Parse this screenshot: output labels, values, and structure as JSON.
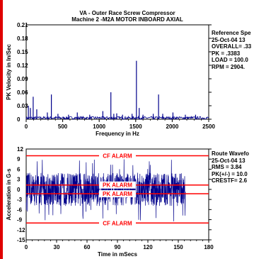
{
  "title_line1": "VA   - Outer Race Screw Compressor",
  "title_line2": "Machine 2 -M2A    MOTOR INBOARD AXIAL",
  "spectrum_info": [
    "Reference Spe",
    "25-Oct-04  13",
    "OVERALL= .33",
    "PK  =  .3383",
    "LOAD = 100.0",
    "RPM = 2904."
  ],
  "waveform_info": [
    "Route Wavefo",
    "25-Oct-04  13",
    "RMS = 3.84",
    "PK(+/-) = 10.0",
    "CRESTF= 2.6"
  ],
  "colors": {
    "trace": "#00008b",
    "alarm": "#ff0000",
    "accent_bar": "#e00000"
  },
  "chart_data": [
    {
      "type": "line",
      "xlabel": "Frequency in Hz",
      "ylabel": "PK Velocity in In/Sec",
      "xlim": [
        0,
        2500
      ],
      "ylim": [
        0,
        0.21
      ],
      "xticks": [
        "0",
        "500",
        "1000",
        "1500",
        "2000",
        "2500"
      ],
      "yticks": [
        "0",
        "0.03",
        "0.06",
        "0.09",
        "0.12",
        "0.15",
        "0.18",
        "0.21"
      ],
      "peaks": [
        {
          "x": 30,
          "y": 0.03
        },
        {
          "x": 58,
          "y": 0.025
        },
        {
          "x": 96,
          "y": 0.05
        },
        {
          "x": 145,
          "y": 0.022
        },
        {
          "x": 290,
          "y": 0.015
        },
        {
          "x": 345,
          "y": 0.055
        },
        {
          "x": 435,
          "y": 0.012
        },
        {
          "x": 580,
          "y": 0.01
        },
        {
          "x": 700,
          "y": 0.015
        },
        {
          "x": 870,
          "y": 0.01
        },
        {
          "x": 1050,
          "y": 0.018
        },
        {
          "x": 1160,
          "y": 0.06
        },
        {
          "x": 1200,
          "y": 0.012
        },
        {
          "x": 1240,
          "y": 0.013
        },
        {
          "x": 1320,
          "y": 0.01
        },
        {
          "x": 1450,
          "y": 0.012
        },
        {
          "x": 1510,
          "y": 0.13
        },
        {
          "x": 1548,
          "y": 0.025
        },
        {
          "x": 1600,
          "y": 0.01
        },
        {
          "x": 1740,
          "y": 0.012
        },
        {
          "x": 1813,
          "y": 0.055
        },
        {
          "x": 1870,
          "y": 0.012
        },
        {
          "x": 2010,
          "y": 0.015
        },
        {
          "x": 2180,
          "y": 0.01
        },
        {
          "x": 2320,
          "y": 0.01
        }
      ]
    },
    {
      "type": "line",
      "xlabel": "Time in mSecs",
      "ylabel": "Acceleration in G-s",
      "xlim": [
        0,
        180
      ],
      "ylim": [
        -15,
        12
      ],
      "xticks": [
        "0",
        "30",
        "60",
        "90",
        "120",
        "150",
        "180"
      ],
      "yticks": [
        "-15",
        "-12",
        "-9",
        "-6",
        "-3",
        "0",
        "3",
        "6",
        "9",
        "12"
      ],
      "signal": {
        "duration_ms": 157,
        "typical_amplitude": 3.8,
        "peak_positive": 10.0,
        "peak_negative": -10.0
      },
      "alarms": [
        {
          "label": "CF ALARM",
          "y": 10.0
        },
        {
          "label": "PK ALARM",
          "y": 1.3
        },
        {
          "label": "PK ALARM",
          "y": -1.3
        },
        {
          "label": "CF ALARM",
          "y": -10.0
        }
      ]
    }
  ]
}
